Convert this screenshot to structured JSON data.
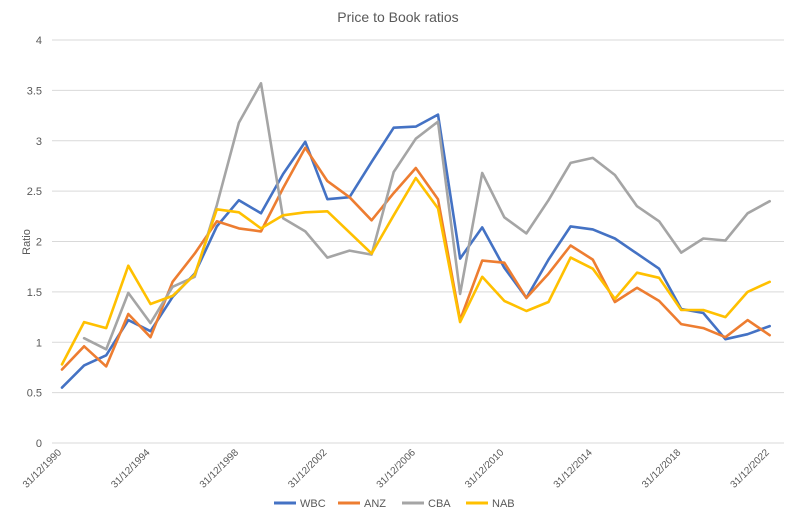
{
  "chart_data": {
    "type": "line",
    "title": "Price to Book ratios",
    "ylabel": "Ratio",
    "xlabel": "",
    "ylim": [
      0,
      4
    ],
    "yticks": [
      0,
      0.5,
      1,
      1.5,
      2,
      2.5,
      3,
      3.5,
      4
    ],
    "ytick_labels": [
      "0",
      "0.5",
      "1",
      "1.5",
      "2",
      "2.5",
      "3",
      "3.5",
      "4"
    ],
    "grid": true,
    "legend_position": "bottom",
    "x": [
      "31/12/1990",
      "31/12/1991",
      "31/12/1992",
      "31/12/1993",
      "31/12/1994",
      "31/12/1995",
      "31/12/1996",
      "31/12/1997",
      "31/12/1998",
      "31/12/1999",
      "31/12/2000",
      "31/12/2001",
      "31/12/2002",
      "31/12/2003",
      "31/12/2004",
      "31/12/2005",
      "31/12/2006",
      "31/12/2007",
      "31/12/2008",
      "31/12/2009",
      "31/12/2010",
      "31/12/2011",
      "31/12/2012",
      "31/12/2013",
      "31/12/2014",
      "31/12/2015",
      "31/12/2016",
      "31/12/2017",
      "31/12/2018",
      "31/12/2019",
      "31/12/2020",
      "31/12/2021",
      "31/12/2022",
      "31/12/2023"
    ],
    "xtick_labels": [
      "31/12/1990",
      "31/12/1994",
      "31/12/1998",
      "31/12/2002",
      "31/12/2006",
      "31/12/2010",
      "31/12/2014",
      "31/12/2018",
      "31/12/2022"
    ],
    "series": [
      {
        "name": "WBC",
        "color": "#4472c4",
        "values": [
          0.55,
          0.77,
          0.87,
          1.22,
          1.11,
          1.45,
          1.68,
          2.15,
          2.41,
          2.28,
          2.67,
          2.99,
          2.42,
          2.44,
          2.79,
          3.13,
          3.14,
          3.26,
          1.83,
          2.14,
          1.74,
          1.44,
          1.82,
          2.15,
          2.12,
          2.03,
          1.88,
          1.73,
          1.33,
          1.29,
          1.03,
          1.08,
          1.16,
          null
        ]
      },
      {
        "name": "ANZ",
        "color": "#ed7d31",
        "values": [
          0.73,
          0.96,
          0.76,
          1.28,
          1.05,
          1.6,
          1.88,
          2.2,
          2.13,
          2.1,
          2.53,
          2.93,
          2.6,
          2.44,
          2.21,
          2.48,
          2.73,
          2.42,
          1.22,
          1.81,
          1.79,
          1.44,
          1.68,
          1.96,
          1.82,
          1.4,
          1.54,
          1.41,
          1.18,
          1.14,
          1.05,
          1.22,
          1.07,
          null
        ]
      },
      {
        "name": "CBA",
        "color": "#a5a5a5",
        "values": [
          null,
          1.04,
          0.93,
          1.49,
          1.19,
          1.55,
          1.65,
          2.36,
          3.18,
          3.57,
          2.23,
          2.1,
          1.84,
          1.91,
          1.87,
          2.69,
          3.02,
          3.19,
          1.48,
          2.68,
          2.24,
          2.08,
          2.41,
          2.78,
          2.83,
          2.66,
          2.35,
          2.2,
          1.89,
          2.03,
          2.01,
          2.28,
          2.4,
          null
        ]
      },
      {
        "name": "NAB",
        "color": "#ffc000",
        "values": [
          0.78,
          1.2,
          1.14,
          1.76,
          1.38,
          1.46,
          1.67,
          2.32,
          2.29,
          2.13,
          2.26,
          2.29,
          2.3,
          2.09,
          1.88,
          2.26,
          2.63,
          2.33,
          1.2,
          1.65,
          1.41,
          1.31,
          1.4,
          1.84,
          1.73,
          1.43,
          1.69,
          1.64,
          1.32,
          1.32,
          1.25,
          1.5,
          1.6,
          null
        ]
      }
    ]
  }
}
